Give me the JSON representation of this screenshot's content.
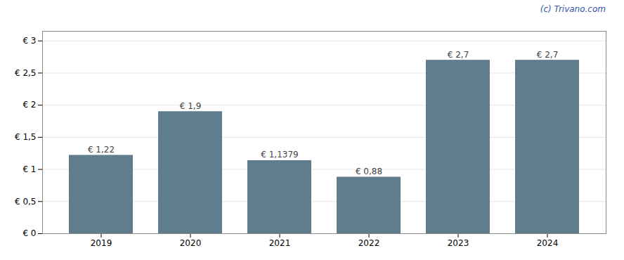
{
  "chart_data": {
    "type": "bar",
    "categories": [
      "2019",
      "2020",
      "2021",
      "2022",
      "2023",
      "2024"
    ],
    "values": [
      1.22,
      1.9,
      1.1379,
      0.88,
      2.7,
      2.7
    ],
    "value_labels": [
      "€ 1,22",
      "€ 1,9",
      "€ 1,1379",
      "€ 0,88",
      "€ 2,7",
      "€ 2,7"
    ],
    "data_labels": true,
    "color": "#5f7d8c",
    "ylim": [
      0,
      3.15
    ],
    "yticks": [
      {
        "value": 0,
        "label": "€ 0"
      },
      {
        "value": 0.5,
        "label": "€ 0,5"
      },
      {
        "value": 1.0,
        "label": "€ 1"
      },
      {
        "value": 1.5,
        "label": "€ 1,5"
      },
      {
        "value": 2.0,
        "label": "€ 2"
      },
      {
        "value": 2.5,
        "label": "€ 2,5"
      },
      {
        "value": 3.0,
        "label": "€ 3"
      }
    ],
    "grid": true,
    "annotations": [
      "(c) Trivano.com"
    ]
  }
}
